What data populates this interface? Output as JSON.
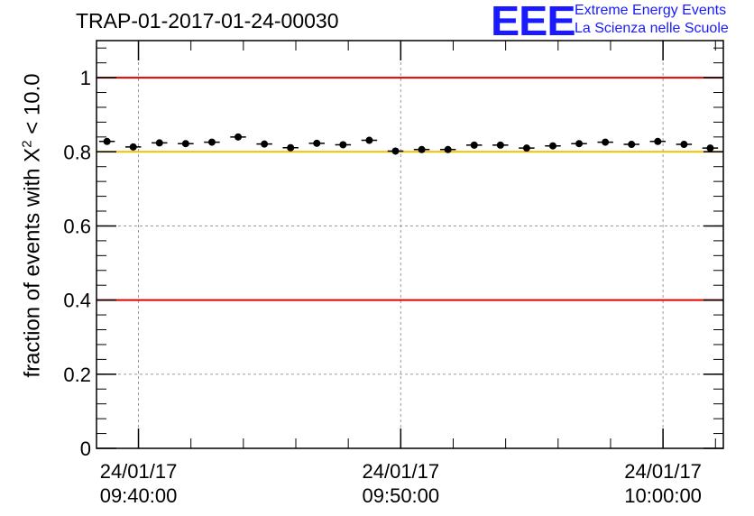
{
  "title": "TRAP-01-2017-01-24-00030",
  "logo": {
    "mark": "EEE",
    "line1": "Extreme Energy Events",
    "line2": "La Scienza nelle Scuole",
    "color": "#1a1aff"
  },
  "chart_data": {
    "type": "scatter",
    "ylabel_prefix": "fraction of events with ",
    "ylabel_chi": "X",
    "ylabel_sup": "2",
    "ylabel_suffix": " < 10.0",
    "xlabel": "",
    "ylim": [
      0,
      1.1
    ],
    "yticks": [
      {
        "value": 0,
        "label": "0"
      },
      {
        "value": 0.2,
        "label": "0.2"
      },
      {
        "value": 0.4,
        "label": "0.4"
      },
      {
        "value": 0.6,
        "label": "0.6"
      },
      {
        "value": 0.8,
        "label": "0.8"
      },
      {
        "value": 1,
        "label": "1"
      }
    ],
    "xlim_minutes": [
      -1.6,
      22.3
    ],
    "xticks": [
      {
        "minutes": 0,
        "date": "24/01/17",
        "time": "09:40:00"
      },
      {
        "minutes": 10,
        "date": "24/01/17",
        "time": "09:50:00"
      },
      {
        "minutes": 20,
        "date": "24/01/17",
        "time": "10:00:00"
      }
    ],
    "grid": true,
    "reference_lines": [
      {
        "y": 1.0,
        "color": "#e00000"
      },
      {
        "y": 0.4,
        "color": "#e00000"
      },
      {
        "y": 0.8,
        "color": "#f0c000"
      }
    ],
    "bin_half_width_minutes": 0.3,
    "points": [
      {
        "x": -1.2,
        "y": 0.828
      },
      {
        "x": -0.2,
        "y": 0.813
      },
      {
        "x": 0.8,
        "y": 0.824
      },
      {
        "x": 1.8,
        "y": 0.822
      },
      {
        "x": 2.8,
        "y": 0.826
      },
      {
        "x": 3.8,
        "y": 0.84
      },
      {
        "x": 4.8,
        "y": 0.821
      },
      {
        "x": 5.8,
        "y": 0.811
      },
      {
        "x": 6.8,
        "y": 0.823
      },
      {
        "x": 7.8,
        "y": 0.819
      },
      {
        "x": 8.8,
        "y": 0.831
      },
      {
        "x": 9.8,
        "y": 0.802
      },
      {
        "x": 10.8,
        "y": 0.806
      },
      {
        "x": 11.8,
        "y": 0.806
      },
      {
        "x": 12.8,
        "y": 0.818
      },
      {
        "x": 13.8,
        "y": 0.818
      },
      {
        "x": 14.8,
        "y": 0.81
      },
      {
        "x": 15.8,
        "y": 0.816
      },
      {
        "x": 16.8,
        "y": 0.822
      },
      {
        "x": 17.8,
        "y": 0.826
      },
      {
        "x": 18.8,
        "y": 0.82
      },
      {
        "x": 19.8,
        "y": 0.828
      },
      {
        "x": 20.8,
        "y": 0.82
      },
      {
        "x": 21.8,
        "y": 0.81
      }
    ]
  }
}
